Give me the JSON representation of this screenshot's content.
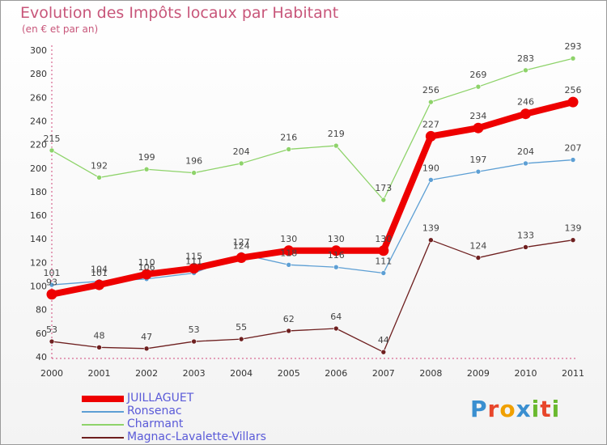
{
  "header": {
    "title": "Evolution des Impôts locaux par Habitant",
    "subtitle": "(en € et par an)"
  },
  "logo": {
    "letters": [
      "P",
      "r",
      "o",
      "x",
      "i",
      "t",
      "i"
    ],
    "colors": [
      "#3a8fd0",
      "#e8462b",
      "#f0a000",
      "#3a8fd0",
      "#6ab92f",
      "#e8462b",
      "#6ab92f"
    ]
  },
  "chart_data": {
    "type": "line",
    "title": "Evolution des Impôts locaux par Habitant",
    "subtitle": "(en € et par an)",
    "x": [
      "2000",
      "2001",
      "2002",
      "2003",
      "2004",
      "2005",
      "2006",
      "2007",
      "2008",
      "2009",
      "2010",
      "2011"
    ],
    "ylim": [
      40,
      300
    ],
    "yticks": [
      40,
      60,
      80,
      100,
      120,
      140,
      160,
      180,
      200,
      220,
      240,
      260,
      280,
      300
    ],
    "grid": false,
    "legend_position": "bottom-left",
    "series": [
      {
        "name": "JUILLAGUET",
        "color": "#ee0000",
        "values": [
          93,
          101,
          110,
          115,
          124,
          130,
          130,
          130,
          227,
          234,
          246,
          256
        ],
        "labels": [
          "93",
          "101",
          "110",
          "115",
          "124",
          "130",
          "130",
          "130",
          "227",
          "234",
          "246",
          "256"
        ]
      },
      {
        "name": "Ronsenac",
        "color": "#5d9fd4",
        "values": [
          101,
          104,
          106,
          111,
          127,
          118,
          116,
          111,
          190,
          197,
          204,
          207
        ],
        "labels": [
          "101",
          "104",
          "106",
          "111",
          "127",
          "118",
          "116",
          "111",
          "190",
          "197",
          "204",
          "207"
        ]
      },
      {
        "name": "Charmant",
        "color": "#8ed36a",
        "values": [
          215,
          192,
          199,
          196,
          204,
          216,
          219,
          173,
          256,
          269,
          283,
          293
        ],
        "labels": [
          "215",
          "192",
          "199",
          "196",
          "204",
          "216",
          "219",
          "173",
          "256",
          "269",
          "283",
          "293"
        ]
      },
      {
        "name": "Magnac-Lavalette-Villars",
        "color": "#6e1f1f",
        "values": [
          53,
          48,
          47,
          53,
          55,
          62,
          64,
          44,
          139,
          124,
          133,
          139
        ],
        "labels": [
          "53",
          "48",
          "47",
          "53",
          "55",
          "62",
          "64",
          "44",
          "139",
          "124",
          "133",
          "139"
        ]
      }
    ]
  }
}
